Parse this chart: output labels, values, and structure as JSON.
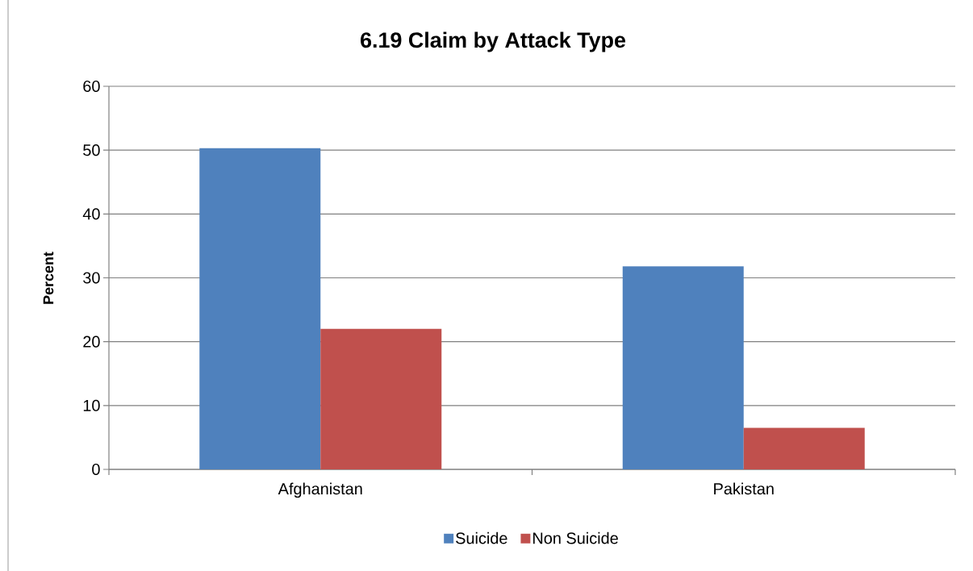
{
  "chart_data": {
    "type": "bar",
    "title": "6.19 Claim by Attack Type",
    "ylabel": "Percent",
    "categories": [
      "Afghanistan",
      "Pakistan"
    ],
    "series": [
      {
        "name": "Suicide",
        "color": "#4f81bd",
        "values": [
          50.3,
          31.8
        ]
      },
      {
        "name": "Non Suicide",
        "color": "#c0504d",
        "values": [
          22.0,
          6.5
        ]
      }
    ],
    "ylim": [
      0,
      60
    ],
    "yticks": [
      0,
      10,
      20,
      30,
      40,
      50,
      60
    ],
    "grid": "y",
    "legend": "bottom"
  }
}
